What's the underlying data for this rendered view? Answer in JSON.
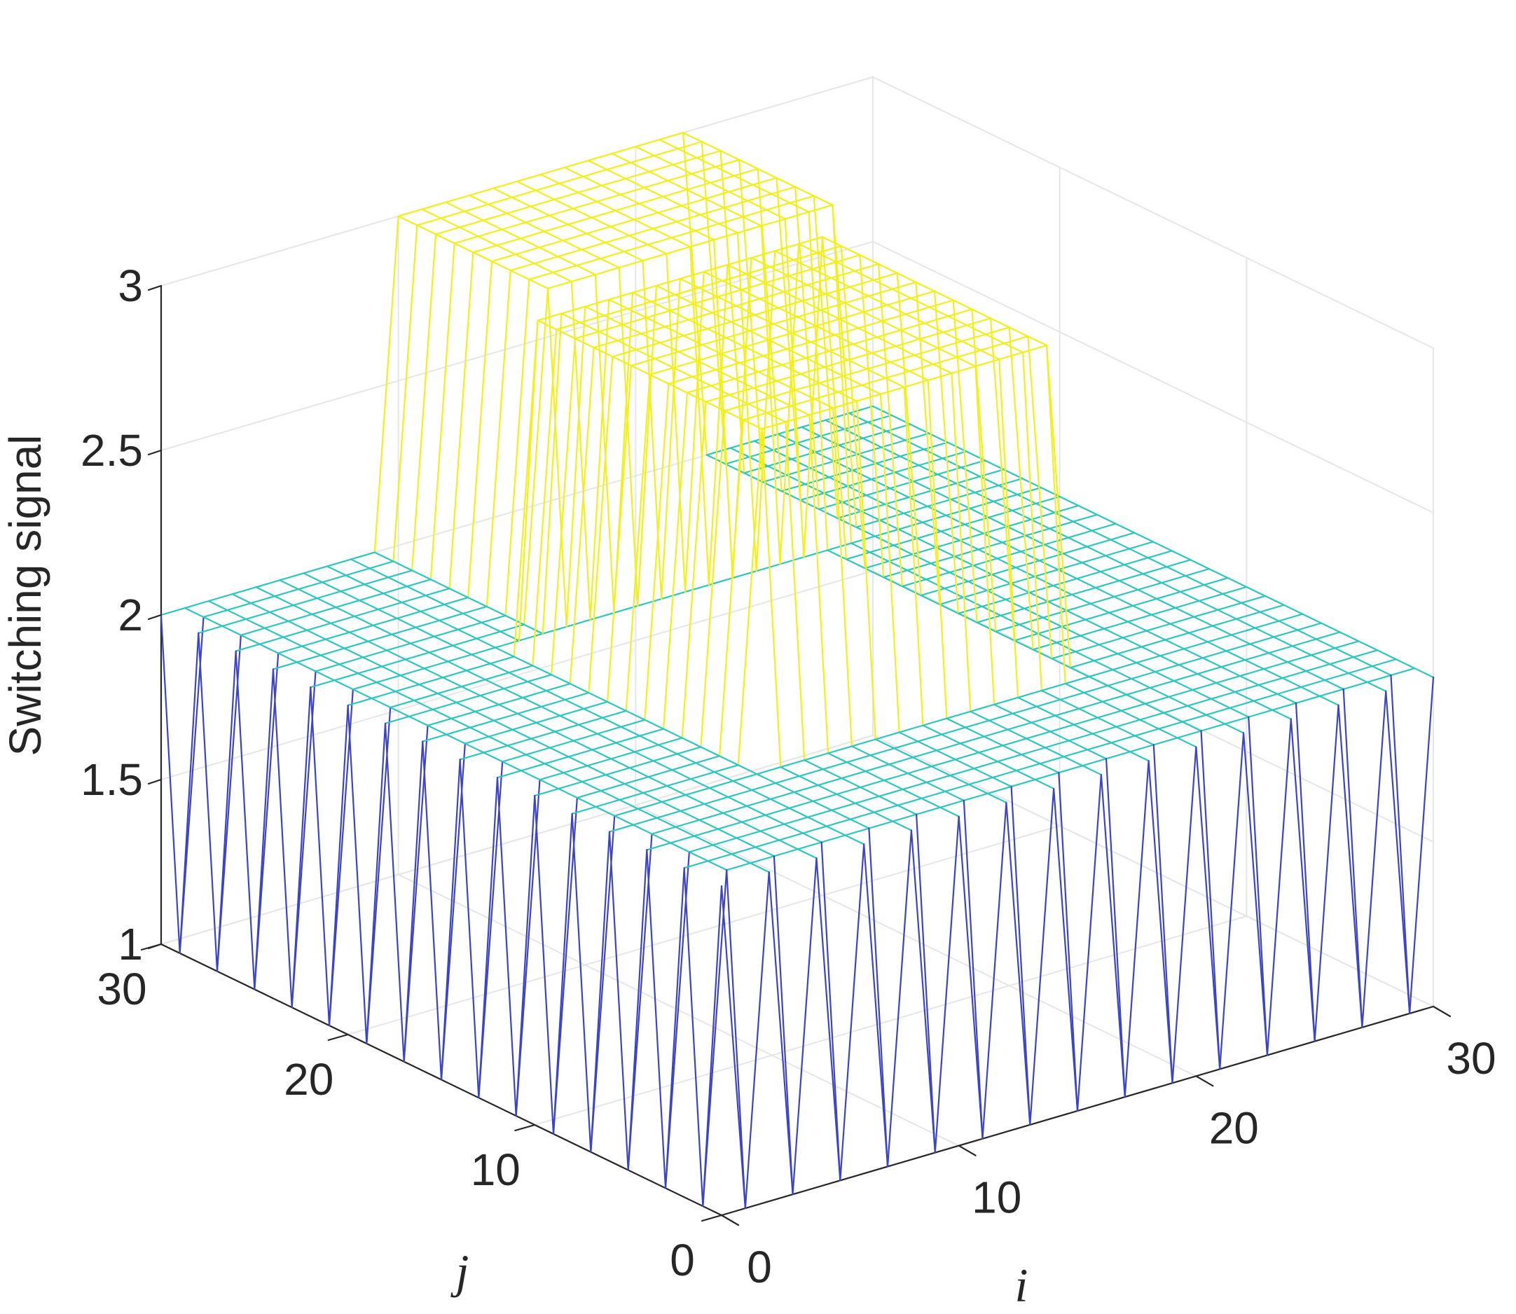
{
  "chart_data": {
    "type": "mesh3d",
    "xlabel": "i",
    "ylabel": "j",
    "zlabel": "Switching signal",
    "xlim": [
      0,
      30
    ],
    "ylim": [
      0,
      30
    ],
    "zlim": [
      1,
      3
    ],
    "xticks": [
      {
        "value": 0,
        "label": "0"
      },
      {
        "value": 10,
        "label": "10"
      },
      {
        "value": 20,
        "label": "20"
      },
      {
        "value": 30,
        "label": "30"
      }
    ],
    "yticks": [
      {
        "value": 0,
        "label": "0"
      },
      {
        "value": 10,
        "label": "10"
      },
      {
        "value": 20,
        "label": "20"
      },
      {
        "value": 30,
        "label": "30"
      }
    ],
    "zticks": [
      {
        "value": 1,
        "label": "1"
      },
      {
        "value": 1.5,
        "label": "1.5"
      },
      {
        "value": 2,
        "label": "2"
      },
      {
        "value": 2.5,
        "label": "2.5"
      },
      {
        "value": 3,
        "label": "3"
      }
    ],
    "grid": true,
    "colormap": "parula",
    "colors": {
      "z1": "#3b44c9",
      "z2": "#2fc6c0",
      "z3": "#f2ef1c"
    },
    "i_range": [
      0,
      30
    ],
    "j_range": [
      0,
      30
    ],
    "grid_step": 1,
    "levels": [
      {
        "value": 1,
        "pattern": "checkerboard cells where (i + j) is odd"
      },
      {
        "value": 2,
        "region": {
          "i": [
            0,
            30
          ],
          "j": [
            0,
            30
          ]
        }
      },
      {
        "value": 3,
        "region": {
          "i": [
            8,
            20
          ],
          "j": [
            8,
            20
          ]
        }
      },
      {
        "value": 3,
        "region": {
          "i": [
            10,
            22
          ],
          "j": [
            22,
            30
          ]
        }
      }
    ]
  }
}
